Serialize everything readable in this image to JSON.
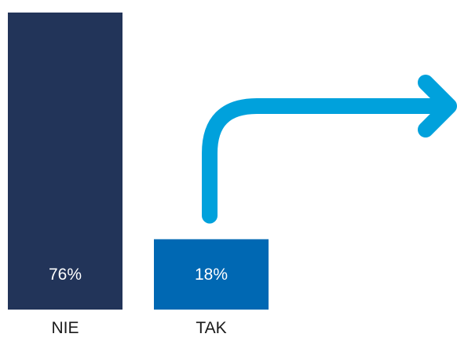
{
  "chart_data": {
    "type": "bar",
    "categories": [
      "NIE",
      "TAK"
    ],
    "values": [
      76,
      18
    ],
    "value_labels": [
      "76%",
      "18%"
    ],
    "ylim": [
      0,
      78
    ],
    "grid": false,
    "title": "",
    "xlabel": "",
    "ylabel": "",
    "colors": [
      "#223459",
      "#0068b3"
    ],
    "annotation": {
      "type": "arrow",
      "icon": "arrow-right-icon",
      "color": "#00a1dc",
      "from_category": "TAK"
    }
  }
}
